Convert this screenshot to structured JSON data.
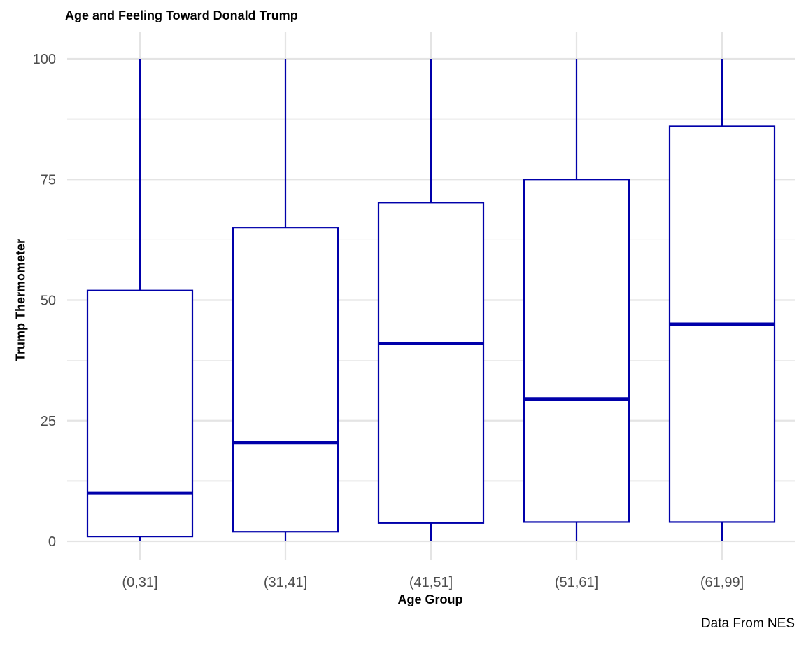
{
  "chart_data": {
    "type": "boxplot",
    "title": "Age and Feeling Toward Donald Trump",
    "xlabel": "Age Group",
    "ylabel": "Trump Thermometer",
    "caption": "Data From NES",
    "ylim": [
      0,
      100
    ],
    "yticks": [
      0,
      25,
      50,
      75,
      100
    ],
    "grid": true,
    "color": "#0000aa",
    "categories": [
      "(0,31]",
      "(31,41]",
      "(41,51]",
      "(51,61]",
      "(61,99]"
    ],
    "boxes": [
      {
        "min": 0,
        "q1": 1,
        "median": 10,
        "q3": 52,
        "max": 100
      },
      {
        "min": 0,
        "q1": 2,
        "median": 20.5,
        "q3": 65,
        "max": 100
      },
      {
        "min": 0,
        "q1": 3.8,
        "median": 41,
        "q3": 70.2,
        "max": 100
      },
      {
        "min": 0,
        "q1": 4,
        "median": 29.5,
        "q3": 75,
        "max": 100
      },
      {
        "min": 0,
        "q1": 4,
        "median": 45,
        "q3": 86,
        "max": 100
      }
    ]
  }
}
